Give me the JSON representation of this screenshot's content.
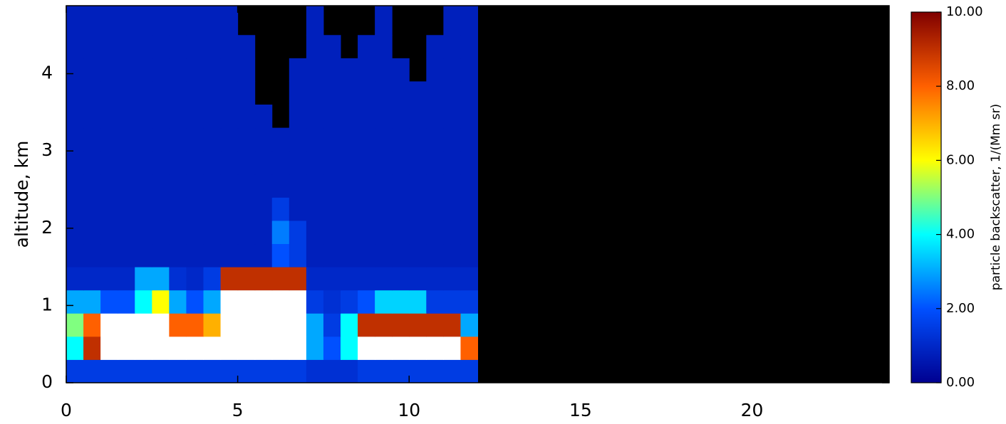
{
  "chart_data": {
    "type": "heatmap",
    "ylabel": "altitude,  km",
    "colorbar_label": "particle backscatter,  1/(Mm sr)",
    "xlim": [
      0,
      24
    ],
    "ylim": [
      0,
      4.88
    ],
    "xticks": [
      0,
      5,
      10,
      15,
      20
    ],
    "yticks": [
      0,
      1,
      2,
      3,
      4
    ],
    "clim": [
      0,
      10
    ],
    "cticks": [
      {
        "value": 0,
        "label": "0.00"
      },
      {
        "value": 2,
        "label": "2.00"
      },
      {
        "value": 4,
        "label": "4.00"
      },
      {
        "value": 6,
        "label": "6.00"
      },
      {
        "value": 8,
        "label": "8.00"
      },
      {
        "value": 10,
        "label": "10.00"
      }
    ],
    "colormap": [
      "#000090",
      "#0050ff",
      "#00ffff",
      "#ffff00",
      "#ff6000",
      "#800000"
    ],
    "over_color": "#ffffff",
    "missing_color": "#000000",
    "grid": false,
    "xbins": [
      0,
      0.5,
      1,
      1.5,
      2,
      2.5,
      3,
      3.5,
      4,
      4.5,
      5,
      5.5,
      6,
      6.5,
      7,
      7.5,
      8,
      8.5,
      9,
      9.5,
      10,
      10.5,
      11,
      11.5,
      12
    ],
    "ybins": [
      0,
      0.3,
      0.6,
      0.9,
      1.2,
      1.5,
      1.8,
      2.1,
      2.4,
      2.7,
      3.0,
      3.3,
      3.6,
      3.9,
      4.2,
      4.5,
      4.88
    ],
    "z": [
      [
        1.5,
        1.5,
        1.5,
        1.5,
        1.5,
        1.5,
        1.5,
        1.5,
        1.5,
        1.5,
        1.5,
        1.5,
        1.5,
        1.5,
        1.2,
        1.2,
        1.2,
        1.5,
        1.5,
        1.5,
        1.5,
        1.5,
        1.5,
        1.5
      ],
      [
        4,
        9,
        12,
        12,
        12,
        12,
        12,
        12,
        12,
        12,
        12,
        12,
        12,
        12,
        3,
        2,
        4,
        12,
        12,
        12,
        12,
        12,
        12,
        8
      ],
      [
        5,
        8,
        12,
        12,
        12,
        12,
        8,
        8,
        7,
        12,
        12,
        12,
        12,
        12,
        3,
        1.5,
        4,
        9,
        9,
        9,
        9,
        9,
        9,
        3
      ],
      [
        3,
        3,
        2,
        2,
        4,
        6,
        3,
        2,
        3,
        12,
        12,
        12,
        12,
        12,
        1.5,
        1.2,
        1.5,
        2,
        3.5,
        3.5,
        3.5,
        1.5,
        1.5,
        1.5
      ],
      [
        1,
        1,
        1,
        1,
        3,
        3,
        1.2,
        1,
        1.5,
        9,
        9,
        9,
        9,
        9,
        1,
        1,
        1,
        1,
        1,
        1,
        1,
        1,
        1,
        1
      ],
      [
        0.8,
        0.8,
        0.8,
        0.8,
        0.8,
        0.8,
        0.8,
        0.8,
        0.8,
        0.8,
        0.8,
        0.8,
        2,
        1.5,
        0.8,
        0.8,
        0.8,
        0.8,
        0.8,
        0.8,
        0.8,
        0.8,
        0.8,
        0.8
      ],
      [
        0.8,
        0.8,
        0.8,
        0.8,
        0.8,
        0.8,
        0.8,
        0.8,
        0.8,
        0.8,
        0.8,
        0.8,
        2.5,
        1.5,
        0.8,
        0.8,
        0.8,
        0.8,
        0.8,
        0.8,
        0.8,
        0.8,
        0.8,
        0.8
      ],
      [
        0.8,
        0.8,
        0.8,
        0.8,
        0.8,
        0.8,
        0.8,
        0.8,
        0.8,
        0.8,
        0.8,
        0.8,
        1.5,
        0.8,
        0.8,
        0.8,
        0.8,
        0.8,
        0.8,
        0.8,
        0.8,
        0.8,
        0.8,
        0.8
      ],
      [
        0.8,
        0.8,
        0.8,
        0.8,
        0.8,
        0.8,
        0.8,
        0.8,
        0.8,
        0.8,
        0.8,
        0.8,
        0.8,
        0.8,
        0.8,
        0.8,
        0.8,
        0.8,
        0.8,
        0.8,
        0.8,
        0.8,
        0.8,
        0.8
      ],
      [
        0.8,
        0.8,
        0.8,
        0.8,
        0.8,
        0.8,
        0.8,
        0.8,
        0.8,
        0.8,
        0.8,
        0.8,
        0.8,
        0.8,
        0.8,
        0.8,
        0.8,
        0.8,
        0.8,
        0.8,
        0.8,
        0.8,
        0.8,
        0.8
      ],
      [
        0.8,
        0.8,
        0.8,
        0.8,
        0.8,
        0.8,
        0.8,
        0.8,
        0.8,
        0.8,
        0.8,
        0.8,
        0.8,
        0.8,
        0.8,
        0.8,
        0.8,
        0.8,
        0.8,
        0.8,
        0.8,
        0.8,
        0.8,
        0.8
      ],
      [
        0.8,
        0.8,
        0.8,
        0.8,
        0.8,
        0.8,
        0.8,
        0.8,
        0.8,
        0.8,
        0.8,
        0.8,
        null,
        0.8,
        0.8,
        0.8,
        0.8,
        0.8,
        0.8,
        0.8,
        0.8,
        0.8,
        0.8,
        0.8
      ],
      [
        0.8,
        0.8,
        0.8,
        0.8,
        0.8,
        0.8,
        0.8,
        0.8,
        0.8,
        0.8,
        0.8,
        null,
        null,
        0.8,
        0.8,
        0.8,
        0.8,
        0.8,
        0.8,
        0.8,
        0.8,
        0.8,
        0.8,
        0.8
      ],
      [
        0.8,
        0.8,
        0.8,
        0.8,
        0.8,
        0.8,
        0.8,
        0.8,
        0.8,
        0.8,
        0.8,
        null,
        null,
        0.8,
        0.8,
        0.8,
        0.8,
        0.8,
        0.8,
        0.8,
        null,
        0.8,
        0.8,
        0.8
      ],
      [
        0.8,
        0.8,
        0.8,
        0.8,
        0.8,
        0.8,
        0.8,
        0.8,
        0.8,
        0.8,
        0.8,
        null,
        null,
        null,
        0.8,
        0.8,
        null,
        0.8,
        0.8,
        null,
        null,
        0.8,
        0.8,
        0.8
      ],
      [
        0.8,
        0.8,
        0.8,
        0.8,
        0.8,
        0.8,
        0.8,
        0.8,
        0.8,
        0.8,
        null,
        null,
        null,
        null,
        0.8,
        null,
        null,
        null,
        0.8,
        null,
        null,
        null,
        0.8,
        0.8
      ]
    ]
  }
}
